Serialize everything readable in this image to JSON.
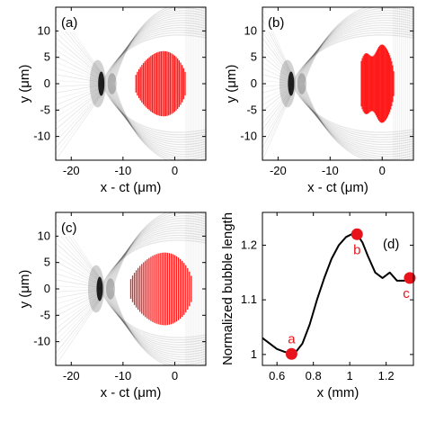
{
  "colors": {
    "particle": "#ff1a1a",
    "wake": "#000000",
    "curve": "#000000",
    "marker": "#e8141c",
    "frame": "#000000"
  },
  "chart_data": [
    {
      "type": "scatter",
      "panel_label": "(a)",
      "xlabel": "x - ct (μm)",
      "ylabel": "y (μm)",
      "xlim": [
        -23,
        6
      ],
      "ylim": [
        -14.5,
        14.5
      ],
      "xticks": [
        -20,
        -10,
        0
      ],
      "yticks": [
        -10,
        -5,
        0,
        5,
        10
      ],
      "particle_bunch": {
        "x_min": -7.5,
        "x_max": 2.0,
        "half_height": 7.0,
        "shape": "dome"
      },
      "wake_front_x": -14.2
    },
    {
      "type": "scatter",
      "panel_label": "(b)",
      "xlabel": "x - ct (μm)",
      "ylabel": "y (μm)",
      "xlim": [
        -23,
        6
      ],
      "ylim": [
        -14.5,
        14.5
      ],
      "xticks": [
        -20,
        -10,
        0
      ],
      "yticks": [
        -10,
        -5,
        0,
        5,
        10
      ],
      "particle_bunch": {
        "x_min": -4.0,
        "x_max": 2.2,
        "half_height": 8.2,
        "shape": "heart"
      },
      "wake_front_x": -17.5
    },
    {
      "type": "scatter",
      "panel_label": "(c)",
      "xlabel": "x - ct (μm)",
      "ylabel": "y (μm)",
      "xlim": [
        -23,
        6
      ],
      "ylim": [
        -14.5,
        14.5
      ],
      "xticks": [
        -20,
        -10,
        0
      ],
      "yticks": [
        -10,
        -5,
        0,
        5,
        10
      ],
      "particle_bunch": {
        "x_min": -8.5,
        "x_max": 3.2,
        "half_height": 7.8,
        "shape": "dome"
      },
      "wake_front_x": -14.5
    },
    {
      "type": "line",
      "panel_label": "(d)",
      "xlabel": "x (mm)",
      "ylabel": "Normalized bubble length",
      "xlim": [
        0.52,
        1.35
      ],
      "ylim": [
        0.98,
        1.26
      ],
      "xticks": [
        0.6,
        0.8,
        1.0,
        1.2
      ],
      "yticks": [
        1.0,
        1.1,
        1.2
      ],
      "x": [
        0.52,
        0.56,
        0.6,
        0.64,
        0.67,
        0.7,
        0.74,
        0.78,
        0.82,
        0.86,
        0.9,
        0.94,
        0.98,
        1.01,
        1.04,
        1.07,
        1.1,
        1.14,
        1.18,
        1.22,
        1.26,
        1.3,
        1.33
      ],
      "y": [
        1.03,
        1.02,
        1.01,
        1.005,
        1.002,
        1.003,
        1.02,
        1.055,
        1.1,
        1.14,
        1.175,
        1.2,
        1.215,
        1.22,
        1.22,
        1.205,
        1.18,
        1.15,
        1.14,
        1.15,
        1.135,
        1.135,
        1.14
      ],
      "markers": [
        {
          "label": "a",
          "x": 0.68,
          "y": 1.001
        },
        {
          "label": "b",
          "x": 1.04,
          "y": 1.22
        },
        {
          "label": "c",
          "x": 1.33,
          "y": 1.14
        }
      ]
    }
  ]
}
